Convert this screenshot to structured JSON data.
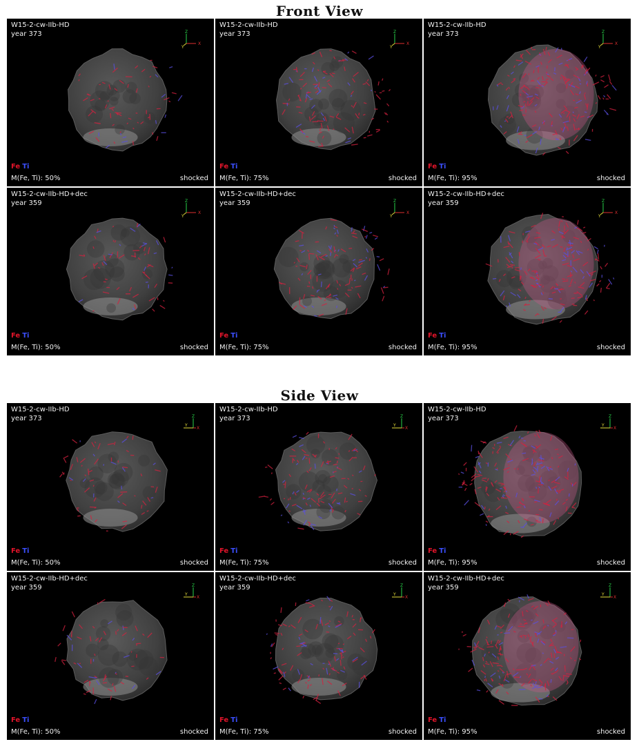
{
  "front": {
    "title": "Front View",
    "panels": [
      {
        "model": "W15-2-cw-IIb-HD",
        "year": "year 373",
        "fe": "Fe",
        "ti": "Ti",
        "mass": "M(Fe, Ti): 50%",
        "state": "shocked"
      },
      {
        "model": "W15-2-cw-IIb-HD",
        "year": "year 373",
        "fe": "Fe",
        "ti": "Ti",
        "mass": "M(Fe, Ti): 75%",
        "state": "shocked"
      },
      {
        "model": "W15-2-cw-IIb-HD",
        "year": "year 373",
        "fe": "Fe",
        "ti": "Ti",
        "mass": "M(Fe, Ti): 95%",
        "state": "shocked"
      },
      {
        "model": "W15-2-cw-IIb-HD+dec",
        "year": "year 359",
        "fe": "Fe",
        "ti": "Ti",
        "mass": "M(Fe, Ti): 50%",
        "state": "shocked"
      },
      {
        "model": "W15-2-cw-IIb-HD+dec",
        "year": "year 359",
        "fe": "Fe",
        "ti": "Ti",
        "mass": "M(Fe, Ti): 75%",
        "state": "shocked"
      },
      {
        "model": "W15-2-cw-IIb-HD+dec",
        "year": "year 359",
        "fe": "Fe",
        "ti": "Ti",
        "mass": "M(Fe, Ti): 95%",
        "state": "shocked"
      }
    ]
  },
  "side": {
    "title": "Side View",
    "panels": [
      {
        "model": "W15-2-cw-IIb-HD",
        "year": "year 373",
        "fe": "Fe",
        "ti": "Ti",
        "mass": "M(Fe, Ti): 50%",
        "state": "shocked"
      },
      {
        "model": "W15-2-cw-IIb-HD",
        "year": "year 373",
        "fe": "Fe",
        "ti": "Ti",
        "mass": "M(Fe, Ti): 75%",
        "state": "shocked"
      },
      {
        "model": "W15-2-cw-IIb-HD",
        "year": "year 373",
        "fe": "Fe",
        "ti": "Ti",
        "mass": "M(Fe, Ti): 95%",
        "state": "shocked"
      },
      {
        "model": "W15-2-cw-IIb-HD+dec",
        "year": "year 359",
        "fe": "Fe",
        "ti": "Ti",
        "mass": "M(Fe, Ti): 50%",
        "state": "shocked"
      },
      {
        "model": "W15-2-cw-IIb-HD+dec",
        "year": "year 359",
        "fe": "Fe",
        "ti": "Ti",
        "mass": "M(Fe, Ti): 75%",
        "state": "shocked"
      },
      {
        "model": "W15-2-cw-IIb-HD+dec",
        "year": "year 359",
        "fe": "Fe",
        "ti": "Ti",
        "mass": "M(Fe, Ti): 95%",
        "state": "shocked"
      }
    ]
  },
  "axes": {
    "front": [
      "Z",
      "Y",
      "X"
    ],
    "side": [
      "Z",
      "Y",
      "X"
    ]
  },
  "colors": {
    "fe": "#e0142a",
    "ti": "#3b4fff",
    "background": "#000000",
    "sphere": "#4a4a4a"
  }
}
